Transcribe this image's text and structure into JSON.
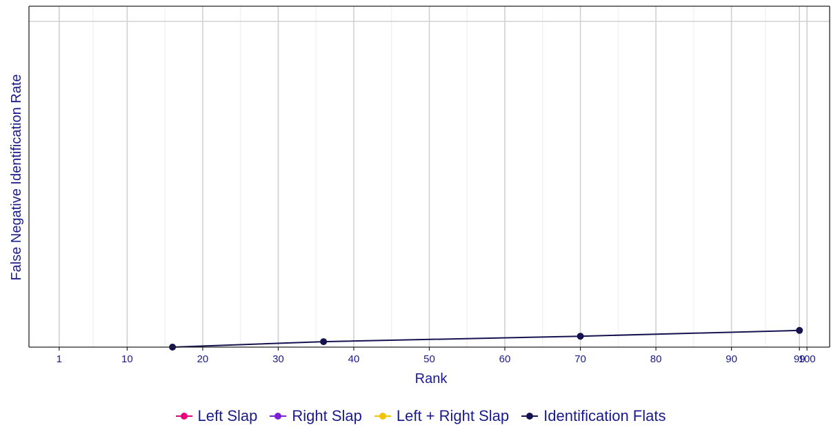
{
  "chart_data": {
    "type": "line",
    "title": "",
    "xlabel": "Rank",
    "ylabel": "False Negative Identification Rate",
    "xlim": [
      -3,
      103
    ],
    "x_ticks": [
      1,
      10,
      20,
      30,
      40,
      50,
      60,
      70,
      80,
      90,
      99,
      100
    ],
    "x_tick_labels": [
      "1",
      "10",
      "20",
      "30",
      "40",
      "50",
      "60",
      "70",
      "80",
      "90",
      "99",
      "100"
    ],
    "ylim": [
      0,
      1
    ],
    "grid": true,
    "legend_position": "bottom",
    "series": [
      {
        "name": "Left Slap",
        "color": "#e6007e",
        "x": [],
        "y": []
      },
      {
        "name": "Right Slap",
        "color": "#7a1fd6",
        "x": [],
        "y": []
      },
      {
        "name": "Left + Right Slap",
        "color": "#f2c400",
        "x": [],
        "y": []
      },
      {
        "name": "Identification Flats",
        "color": "#14124f",
        "x": [
          16,
          36,
          70,
          99
        ],
        "y": [
          0.0,
          0.016,
          0.032,
          0.049
        ]
      }
    ]
  }
}
